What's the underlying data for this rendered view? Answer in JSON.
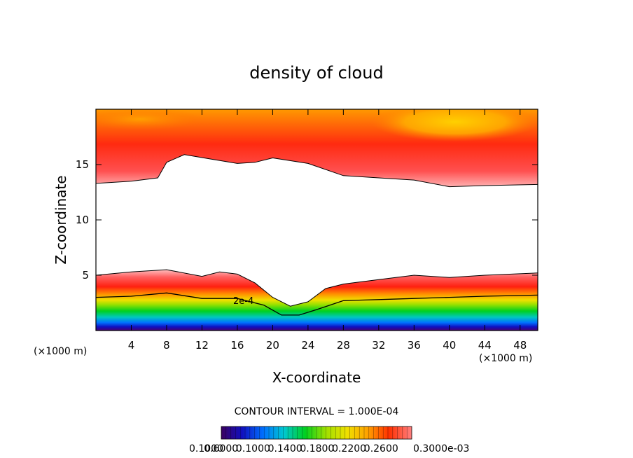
{
  "chart_data": {
    "type": "heatmap",
    "title": "density of cloud",
    "xlabel": "X-coordinate",
    "ylabel": "Z-coordinate",
    "x_unit_label": "(×1000 m)",
    "x_unit_label_right": "(×1000 m)",
    "xlim": [
      0,
      50
    ],
    "ylim": [
      0,
      20
    ],
    "x_ticks": [
      4,
      8,
      12,
      16,
      20,
      24,
      28,
      32,
      36,
      40,
      44,
      48
    ],
    "y_ticks": [
      5,
      10,
      15
    ],
    "contour_interval_label": "CONTOUR INTERVAL = 1.000E-04",
    "contour_label": "2e-4",
    "colorbar_labels": [
      "0.1000",
      "0.6000",
      "0.1000",
      "0.1400",
      "0.1800",
      "0.2200",
      "0.2600",
      "0.3000e-03"
    ],
    "colorbar_colors": [
      "#3a0060",
      "#1010c0",
      "#0070ff",
      "#00c8d0",
      "#00d020",
      "#a0e000",
      "#f0e000",
      "#ffa000",
      "#ff3000",
      "#ff8080"
    ],
    "bands": {
      "upper_cloud_top": 20,
      "upper_cloud_bottom": [
        [
          0,
          13.3
        ],
        [
          4,
          13.5
        ],
        [
          7,
          13.8
        ],
        [
          8,
          15.2
        ],
        [
          10,
          15.9
        ],
        [
          13,
          15.5
        ],
        [
          16,
          15.1
        ],
        [
          18,
          15.2
        ],
        [
          20,
          15.6
        ],
        [
          24,
          15.1
        ],
        [
          28,
          14.0
        ],
        [
          32,
          13.8
        ],
        [
          36,
          13.6
        ],
        [
          40,
          13.0
        ],
        [
          44,
          13.1
        ],
        [
          50,
          13.2
        ]
      ],
      "lower_cloud_top": [
        [
          0,
          5.0
        ],
        [
          4,
          5.3
        ],
        [
          8,
          5.5
        ],
        [
          12,
          4.9
        ],
        [
          14,
          5.3
        ],
        [
          16,
          5.1
        ],
        [
          18,
          4.3
        ],
        [
          20,
          3.0
        ],
        [
          22,
          2.2
        ],
        [
          24,
          2.6
        ],
        [
          26,
          3.8
        ],
        [
          28,
          4.2
        ],
        [
          32,
          4.6
        ],
        [
          36,
          5.0
        ],
        [
          40,
          4.8
        ],
        [
          44,
          5.0
        ],
        [
          50,
          5.2
        ]
      ],
      "contour_2e4": [
        [
          0,
          3.0
        ],
        [
          4,
          3.1
        ],
        [
          8,
          3.4
        ],
        [
          12,
          2.9
        ],
        [
          16,
          2.9
        ],
        [
          19,
          2.3
        ],
        [
          21,
          1.4
        ],
        [
          23,
          1.4
        ],
        [
          25,
          1.9
        ],
        [
          28,
          2.7
        ],
        [
          32,
          2.8
        ],
        [
          36,
          2.9
        ],
        [
          40,
          3.0
        ],
        [
          44,
          3.1
        ],
        [
          50,
          3.2
        ]
      ]
    }
  }
}
